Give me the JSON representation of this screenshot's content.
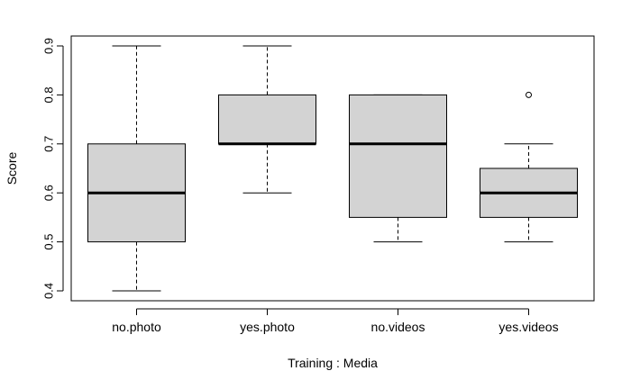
{
  "chart_data": {
    "type": "boxplot",
    "xlabel": "Training : Media",
    "ylabel": "Score",
    "ylim": [
      0.38,
      0.92
    ],
    "yticks": [
      0.4,
      0.5,
      0.6,
      0.7,
      0.8,
      0.9
    ],
    "ytick_labels": [
      "0.4",
      "0.5",
      "0.6",
      "0.7",
      "0.8",
      "0.9"
    ],
    "grid": false,
    "box_fill": "#d3d3d3",
    "categories": [
      "no.photo",
      "yes.photo",
      "no.videos",
      "yes.videos"
    ],
    "boxes": [
      {
        "whisker_low": 0.4,
        "q1": 0.5,
        "median": 0.6,
        "q3": 0.7,
        "whisker_high": 0.9,
        "outliers": []
      },
      {
        "whisker_low": 0.6,
        "q1": 0.7,
        "median": 0.7,
        "q3": 0.8,
        "whisker_high": 0.9,
        "outliers": []
      },
      {
        "whisker_low": 0.5,
        "q1": 0.55,
        "median": 0.7,
        "q3": 0.8,
        "whisker_high": 0.8,
        "outliers": []
      },
      {
        "whisker_low": 0.5,
        "q1": 0.55,
        "median": 0.6,
        "q3": 0.65,
        "whisker_high": 0.7,
        "outliers": [
          0.8
        ]
      }
    ]
  }
}
